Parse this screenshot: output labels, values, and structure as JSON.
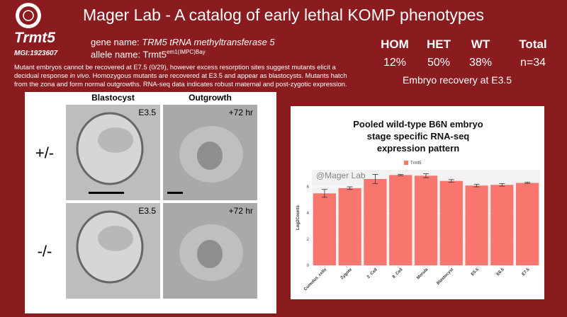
{
  "header": {
    "title": "Mager Lab - A catalog of early lethal KOMP phenotypes"
  },
  "gene": {
    "symbol": "Trmt5",
    "mgi": "MGI:1923607",
    "gene_name_label": "gene name:",
    "gene_name": "TRM5 tRNA methyltransferase 5",
    "allele_label": "allele name:",
    "allele_base": "Trmt5",
    "allele_sup": "em1(IMPC)Bay"
  },
  "description": [
    "Mutant embryos cannot be recovered at E7.5 (0/29), however excess resorption sites suggest mutants elicit a decidual response",
    "in vivo",
    ". Homozygous mutants are recovered at E3.5 and appear as blastocysts. Mutants hatch from the zona and form normal outgrowths. RNA-seq data indicates robust maternal and post-zygotic expression."
  ],
  "recovery": {
    "headers": [
      "HOM",
      "HET",
      "WT",
      "Total"
    ],
    "values": [
      "12%",
      "50%",
      "38%",
      "n=34"
    ],
    "caption": "Embryo recovery at E3.5"
  },
  "images": {
    "columns": [
      "Blastocyst",
      "Outgrowth"
    ],
    "rows": [
      "+/-",
      "-/-"
    ],
    "stages": [
      "E3.5",
      "+72 hr"
    ]
  },
  "chart_data": {
    "type": "bar",
    "title": [
      "Pooled wild-type B6N embryo",
      "stage specific RNA-seq",
      "expression pattern"
    ],
    "watermark": "@Mager Lab",
    "y_label": "Log2Counts",
    "categories": [
      "Cumulus_cells",
      "Zygote",
      "2_Cell",
      "8_Cell",
      "Morula",
      "Blastocyst",
      "E5.5",
      "E6.5",
      "E7.5"
    ],
    "series": [
      {
        "name": "Trmt5",
        "color": "#f8766d",
        "values": [
          5.5,
          5.9,
          6.6,
          6.9,
          6.85,
          6.45,
          6.1,
          6.15,
          6.3
        ],
        "errors": [
          0.3,
          0.1,
          0.35,
          0.05,
          0.15,
          0.1,
          0.1,
          0.1,
          0.05
        ]
      }
    ],
    "ylim": [
      0,
      7.3
    ],
    "yticks": [
      0,
      2,
      4,
      6
    ],
    "grid": true
  }
}
